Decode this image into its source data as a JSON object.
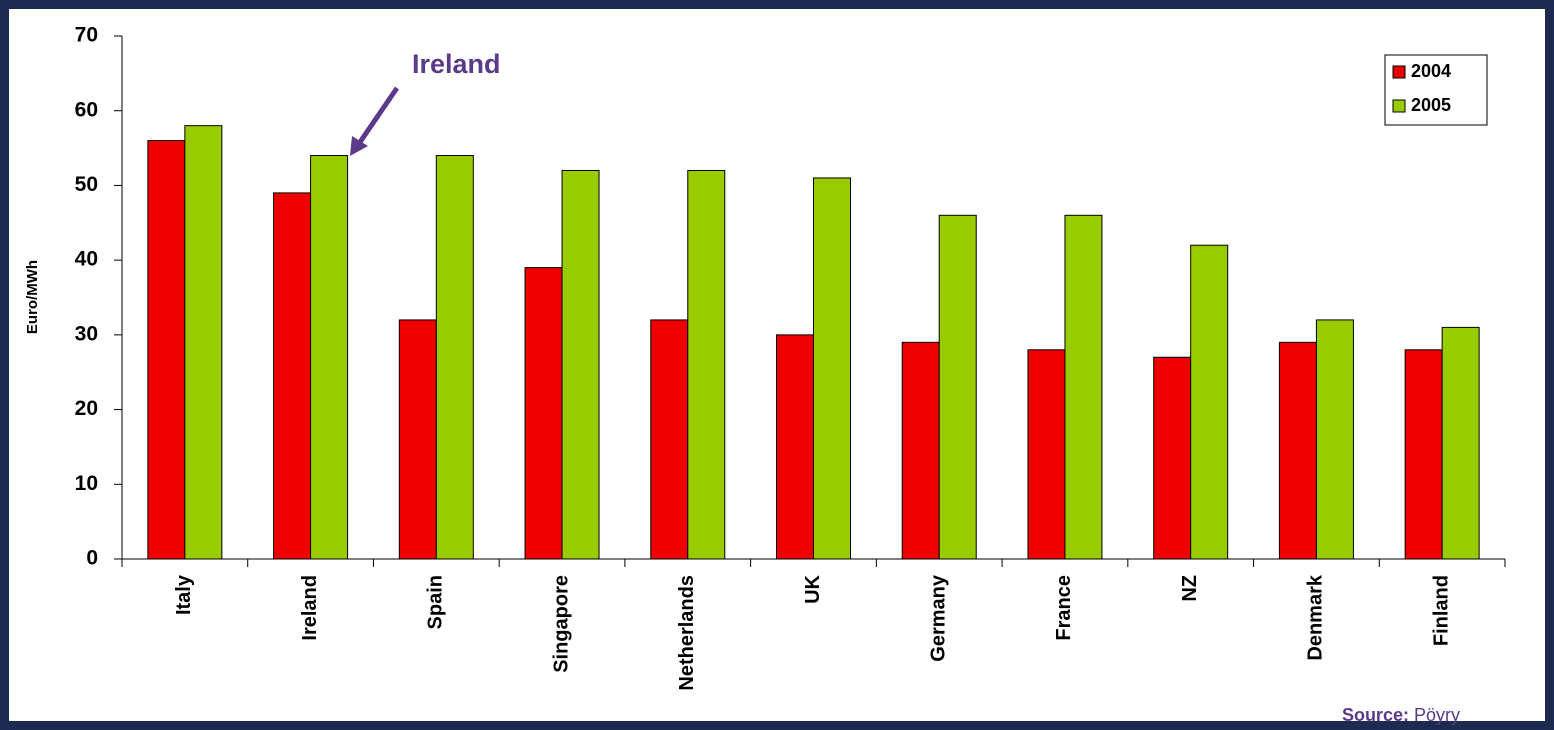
{
  "chart_data": {
    "type": "bar",
    "y_label": "Euro/MWh",
    "categories": [
      "Italy",
      "Ireland",
      "Spain",
      "Singapore",
      "Netherlands",
      "UK",
      "Germany",
      "France",
      "NZ",
      "Denmark",
      "Finland"
    ],
    "series": [
      {
        "name": "2004",
        "color": "#ee0000",
        "values": [
          56,
          49,
          32,
          39,
          32,
          30,
          29,
          28,
          27,
          29,
          28
        ]
      },
      {
        "name": "2005",
        "color": "#99cc00",
        "values": [
          58,
          54,
          54,
          52,
          52,
          51,
          46,
          46,
          42,
          32,
          31
        ]
      }
    ],
    "ylim": [
      0,
      70
    ],
    "yticks": [
      0,
      10,
      20,
      30,
      40,
      50,
      60,
      70
    ],
    "legend": "top-right",
    "annotations": [
      {
        "text": "Ireland"
      }
    ],
    "source": {
      "label": "Source:",
      "name": "Pöyry"
    }
  }
}
